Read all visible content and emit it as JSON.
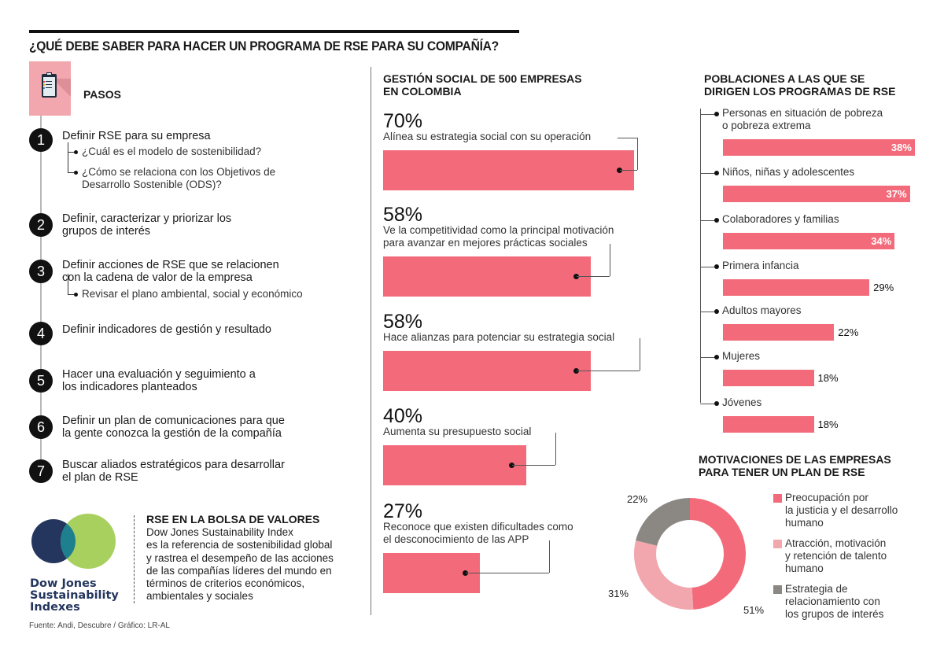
{
  "title": "¿QUÉ DEBE SABER PARA HACER UN PROGRAMA DE RSE PARA SU COMPAÑÍA?",
  "colors": {
    "bar": "#f36b7b",
    "donut_primary": "#f36b7b",
    "donut_secondary": "#f2a6ad",
    "donut_tertiary": "#8b8783",
    "pasos_box": "#f2a6ad",
    "djsi_navy": "#24365e",
    "djsi_teal": "#1e7f8f",
    "djsi_green": "#a8d05e"
  },
  "steps": {
    "header_icon": "clipboard-icon",
    "header_label": "PASOS",
    "items": [
      {
        "num": "1",
        "lines": [
          "Definir RSE para su empresa"
        ],
        "subs": [
          [
            "¿Cuál es el modelo de sostenibilidad?"
          ],
          [
            "¿Cómo se relaciona con los Objetivos de",
            "Desarrollo Sostenible (ODS)?"
          ]
        ]
      },
      {
        "num": "2",
        "lines": [
          "Definir, caracterizar y priorizar los",
          "grupos de interés"
        ],
        "subs": []
      },
      {
        "num": "3",
        "lines": [
          "Definir acciones de RSE que se relacionen",
          "con la cadena de valor de la empresa"
        ],
        "subs": [
          [
            "Revisar el plano ambiental, social y económico"
          ]
        ]
      },
      {
        "num": "4",
        "lines": [
          "Definir indicadores de gestión y resultado"
        ],
        "subs": []
      },
      {
        "num": "5",
        "lines": [
          "Hacer una evaluación y seguimiento a",
          "los indicadores planteados"
        ],
        "subs": []
      },
      {
        "num": "6",
        "lines": [
          "Definir un plan de comunicaciones para que",
          "la gente conozca la gestión de la compañía"
        ],
        "subs": []
      },
      {
        "num": "7",
        "lines": [
          "Buscar aliados estratégicos para desarrollar",
          "el plan de RSE"
        ],
        "subs": []
      }
    ]
  },
  "djsi": {
    "logo_lines": [
      "Dow Jones",
      "Sustainability",
      "Indexes"
    ],
    "title": "RSE EN LA BOLSA DE VALORES",
    "body_lines": [
      "Dow Jones Sustainability Index",
      "es la referencia de sostenibilidad global",
      "y rastrea el desempeño de las acciones",
      "de las compañías líderes del mundo en",
      "términos de criterios económicos,",
      "ambientales y sociales"
    ]
  },
  "source": "Fuente: Andi, Descubre / Gráfico: LR-AL",
  "chart_data": [
    {
      "type": "bar",
      "orientation": "horizontal",
      "title": "GESTIÓN SOCIAL DE 500 EMPRESAS EN COLOMBIA",
      "title_lines": [
        "GESTIÓN SOCIAL DE 500 EMPRESAS",
        "EN COLOMBIA"
      ],
      "xlim": [
        0,
        100
      ],
      "unit": "%",
      "items": [
        {
          "value": 70,
          "label": "70%",
          "desc_lines": [
            "Alínea su estrategia social con su operación"
          ]
        },
        {
          "value": 58,
          "label": "58%",
          "desc_lines": [
            "Ve la competitividad como la principal motivación",
            "para avanzar en mejores prácticas sociales"
          ]
        },
        {
          "value": 58,
          "label": "58%",
          "desc_lines": [
            "Hace alianzas para potenciar su estrategia social"
          ]
        },
        {
          "value": 40,
          "label": "40%",
          "desc_lines": [
            "Aumenta su presupuesto social"
          ]
        },
        {
          "value": 27,
          "label": "27%",
          "desc_lines": [
            "Reconoce que existen dificultades como",
            "el desconocimiento de las APP"
          ]
        }
      ]
    },
    {
      "type": "bar",
      "orientation": "horizontal",
      "title": "POBLACIONES A LAS QUE SE DIRIGEN LOS PROGRAMAS DE RSE",
      "title_lines": [
        "POBLACIONES A LAS QUE SE",
        "DIRIGEN LOS PROGRAMAS DE RSE"
      ],
      "xlim": [
        0,
        38
      ],
      "unit": "%",
      "categories": [
        "Personas en situación de pobreza o pobreza extrema",
        "Niños, niñas y adolescentes",
        "Colaboradores y familias",
        "Primera infancia",
        "Adultos mayores",
        "Mujeres",
        "Jóvenes"
      ],
      "category_lines": [
        [
          "Personas en situación de pobreza",
          "o pobreza extrema"
        ],
        [
          "Niños, niñas y adolescentes"
        ],
        [
          "Colaboradores y familias"
        ],
        [
          "Primera infancia"
        ],
        [
          "Adultos mayores"
        ],
        [
          "Mujeres"
        ],
        [
          "Jóvenes"
        ]
      ],
      "values": [
        38,
        37,
        34,
        29,
        22,
        18,
        18
      ],
      "labels": [
        "38%",
        "37%",
        "34%",
        "29%",
        "22%",
        "18%",
        "18%"
      ]
    },
    {
      "type": "pie",
      "donut": true,
      "title": "MOTIVACIONES DE LAS EMPRESAS PARA TENER UN PLAN DE RSE",
      "title_lines": [
        "MOTIVACIONES DE LAS EMPRESAS",
        "PARA TENER UN PLAN DE RSE"
      ],
      "legend_position": "right",
      "slices": [
        {
          "name": "Preocupación por la justicia y el desarrollo humano",
          "legend_lines": [
            "Preocupación por",
            "la justicia y el desarrollo",
            "humano"
          ],
          "value": 51,
          "label": "51%",
          "color": "#f36b7b"
        },
        {
          "name": "Atracción, motivación y retención de talento humano",
          "legend_lines": [
            "Atracción, motivación",
            "y retención de talento",
            "humano"
          ],
          "value": 31,
          "label": "31%",
          "color": "#f2a6ad"
        },
        {
          "name": "Estrategia de relacionamiento con los grupos de interés",
          "legend_lines": [
            "Estrategia de",
            "relacionamiento con",
            "los grupos de interés"
          ],
          "value": 22,
          "label": "22%",
          "color": "#8b8783"
        }
      ]
    }
  ]
}
